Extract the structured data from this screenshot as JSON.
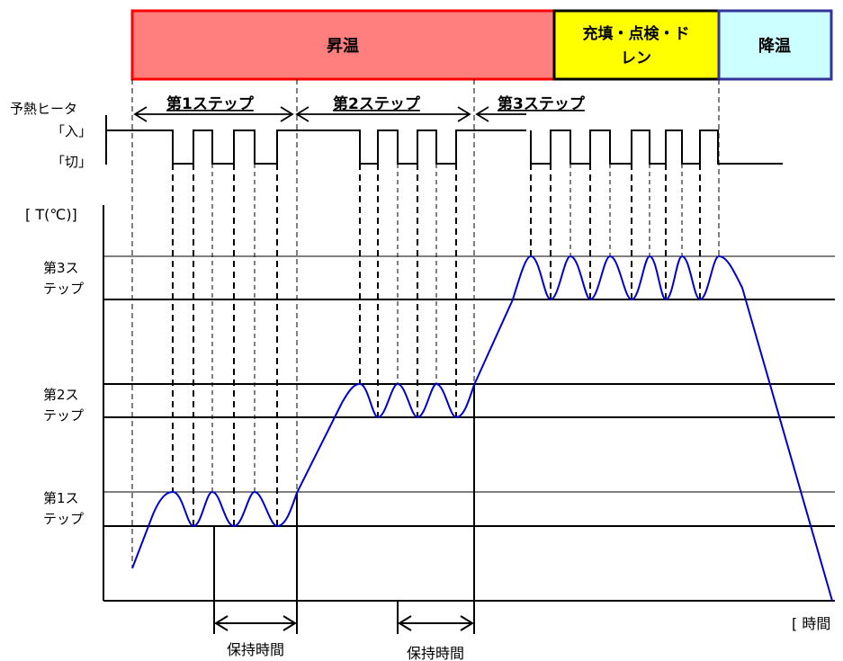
{
  "phases": [
    {
      "label": "昇温",
      "fill": "#FF7F7F",
      "stroke": "#FF0000"
    },
    {
      "label_line1": "充填・点検・ド",
      "label_line2": "レン",
      "fill": "#FFFF00",
      "stroke": "#000000"
    },
    {
      "label": "降温",
      "fill": "#CCFFFF",
      "stroke": "#333399"
    }
  ],
  "steps": [
    "第1ステップ",
    "第2ステップ",
    "第3ステップ"
  ],
  "heater": {
    "title": "予熱ヒータ",
    "on_label": "「入」",
    "off_label": "「切」"
  },
  "y_axis_label": "[ T(℃)]",
  "x_axis_label": "[ 時間",
  "levels": [
    {
      "line1": "第3ス",
      "line2": "テップ"
    },
    {
      "line1": "第2ス",
      "line2": "テップ"
    },
    {
      "line1": "第1ス",
      "line2": "テップ"
    }
  ],
  "hold_labels": [
    "保持時間",
    "保持時間"
  ],
  "colors": {
    "curve": "#0000CC",
    "line": "#000000"
  }
}
